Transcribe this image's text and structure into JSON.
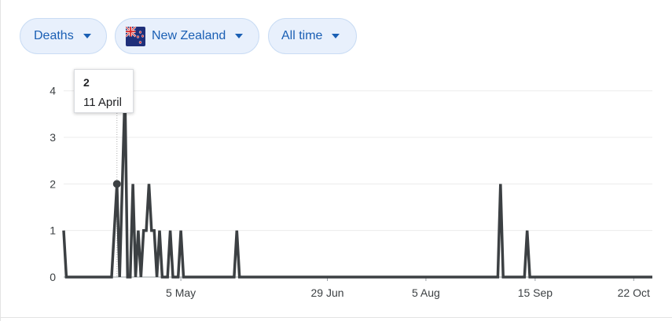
{
  "filters": {
    "metric": {
      "label": "Deaths"
    },
    "country": {
      "label": "New Zealand",
      "flag_icon": "new-zealand-flag-icon"
    },
    "range": {
      "label": "All time"
    }
  },
  "tooltip": {
    "value": "2",
    "date": "11 April"
  },
  "colors": {
    "chip_text": "#1a5fb4",
    "chip_bg": "#e8f0fc",
    "line": "#3c4043",
    "grid": "#ececec"
  },
  "chart_data": {
    "type": "line",
    "x_axis_type": "date",
    "year_inferred": 2020,
    "y_ticks": [
      0,
      1,
      2,
      3,
      4
    ],
    "ylim": [
      0,
      4.4
    ],
    "xlim": [
      "2020-03-22",
      "2020-10-29"
    ],
    "x_ticks": [
      {
        "date": "2020-05-05",
        "label": "5 May"
      },
      {
        "date": "2020-06-29",
        "label": "29 Jun"
      },
      {
        "date": "2020-08-05",
        "label": "5 Aug"
      },
      {
        "date": "2020-09-15",
        "label": "15 Sep"
      },
      {
        "date": "2020-10-22",
        "label": "22 Oct"
      }
    ],
    "highlight": {
      "date": "2020-04-11",
      "value": 2
    },
    "series": [
      {
        "values": [
          {
            "date": "2020-03-22",
            "value": 1
          },
          {
            "date": "2020-03-23",
            "value": 0
          },
          {
            "date": "2020-04-09",
            "value": 0
          },
          {
            "date": "2020-04-11",
            "value": 2
          },
          {
            "date": "2020-04-12",
            "value": 0
          },
          {
            "date": "2020-04-14",
            "value": 4
          },
          {
            "date": "2020-04-15",
            "value": 0
          },
          {
            "date": "2020-04-16",
            "value": 0
          },
          {
            "date": "2020-04-17",
            "value": 2
          },
          {
            "date": "2020-04-18",
            "value": 0
          },
          {
            "date": "2020-04-19",
            "value": 1
          },
          {
            "date": "2020-04-20",
            "value": 0
          },
          {
            "date": "2020-04-21",
            "value": 1
          },
          {
            "date": "2020-04-22",
            "value": 1
          },
          {
            "date": "2020-04-23",
            "value": 2
          },
          {
            "date": "2020-04-24",
            "value": 1
          },
          {
            "date": "2020-04-25",
            "value": 1
          },
          {
            "date": "2020-04-26",
            "value": 0
          },
          {
            "date": "2020-04-27",
            "value": 1
          },
          {
            "date": "2020-04-28",
            "value": 0
          },
          {
            "date": "2020-04-30",
            "value": 0
          },
          {
            "date": "2020-05-01",
            "value": 1
          },
          {
            "date": "2020-05-02",
            "value": 0
          },
          {
            "date": "2020-05-04",
            "value": 0
          },
          {
            "date": "2020-05-05",
            "value": 1
          },
          {
            "date": "2020-05-06",
            "value": 0
          },
          {
            "date": "2020-05-25",
            "value": 0
          },
          {
            "date": "2020-05-26",
            "value": 1
          },
          {
            "date": "2020-05-27",
            "value": 0
          },
          {
            "date": "2020-09-01",
            "value": 0
          },
          {
            "date": "2020-09-02",
            "value": 2
          },
          {
            "date": "2020-09-03",
            "value": 0
          },
          {
            "date": "2020-09-11",
            "value": 0
          },
          {
            "date": "2020-09-12",
            "value": 1
          },
          {
            "date": "2020-09-13",
            "value": 0
          },
          {
            "date": "2020-10-29",
            "value": 0
          }
        ]
      }
    ]
  }
}
